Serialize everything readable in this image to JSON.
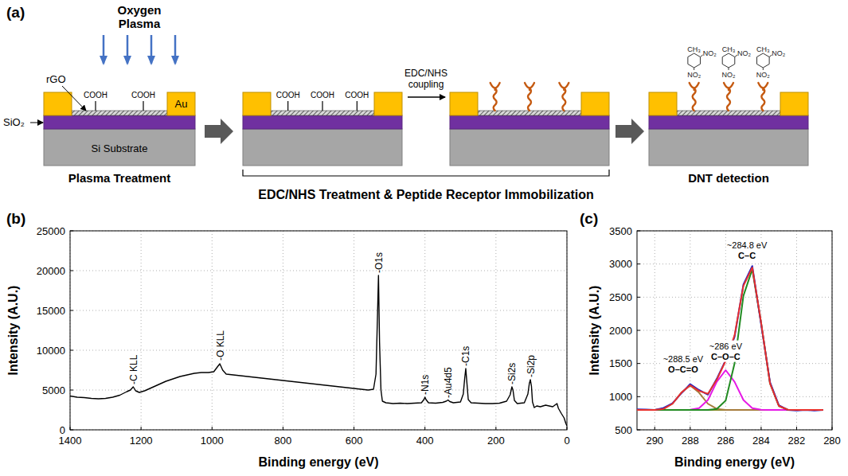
{
  "diagram": {
    "panel_label": "(a)",
    "plasma_label": "Oxygen Plasma",
    "layer_labels": {
      "rgo": "rGO",
      "sio2": "SiO₂",
      "au": "Au",
      "si": "Si Substrate"
    },
    "devices": [
      {
        "groups": [
          "COOH",
          "COOH"
        ],
        "caption": "Plasma Treatment"
      },
      {
        "groups": [
          "COOH",
          "COOH",
          "COOH"
        ]
      },
      {
        "receptors": 3
      },
      {
        "receptors": 3,
        "molecules": 3,
        "caption": "DNT detection"
      }
    ],
    "step_label": "EDC/NHS coupling",
    "bracket_caption": "EDC/NHS Treatment & Peptide Receptor Immobilization",
    "molecule": {
      "methyl": "CH₃",
      "nitro": "NO₂"
    }
  },
  "chart_data": [
    {
      "type": "line",
      "panel_label": "(b)",
      "x_label": "Binding energy (eV)",
      "y_label": "Intensity (A.U.)",
      "xlim": [
        1400,
        0
      ],
      "ylim": [
        0,
        25000
      ],
      "xticks": [
        1400,
        1200,
        1000,
        800,
        600,
        400,
        200,
        0
      ],
      "yticks": [
        0,
        5000,
        10000,
        15000,
        20000,
        25000
      ],
      "grid": true,
      "x": [
        1400,
        1380,
        1360,
        1340,
        1320,
        1300,
        1280,
        1260,
        1240,
        1230,
        1222,
        1215,
        1205,
        1190,
        1170,
        1150,
        1130,
        1110,
        1090,
        1070,
        1050,
        1030,
        1010,
        995,
        985,
        978,
        970,
        960,
        940,
        920,
        900,
        880,
        860,
        840,
        820,
        800,
        780,
        760,
        740,
        720,
        700,
        680,
        660,
        640,
        620,
        600,
        580,
        560,
        545,
        538,
        534,
        531,
        528,
        524,
        520,
        510,
        490,
        470,
        450,
        430,
        410,
        403,
        400,
        397,
        390,
        370,
        350,
        340,
        335,
        330,
        320,
        300,
        292,
        288,
        285,
        282,
        278,
        270,
        250,
        230,
        210,
        190,
        170,
        160,
        155,
        152,
        148,
        140,
        120,
        110,
        106,
        103,
        100,
        97,
        92,
        85,
        75,
        60,
        40,
        28,
        24,
        15,
        8,
        3,
        0
      ],
      "series": [
        {
          "color": "#000000",
          "values": [
            4250,
            4100,
            4050,
            3950,
            3900,
            3950,
            4100,
            4350,
            4800,
            5000,
            5400,
            4900,
            4700,
            4900,
            5300,
            5700,
            6100,
            6400,
            6700,
            6900,
            7100,
            7200,
            7200,
            7300,
            7900,
            8300,
            7500,
            7000,
            6900,
            6800,
            6700,
            6600,
            6500,
            6400,
            6300,
            6200,
            6100,
            6000,
            5900,
            5800,
            5700,
            5600,
            5500,
            5400,
            5300,
            5200,
            5100,
            5000,
            5100,
            7000,
            14000,
            19400,
            11000,
            5000,
            3600,
            3400,
            3300,
            3350,
            3300,
            3350,
            3400,
            3800,
            4100,
            3800,
            3400,
            3350,
            3450,
            3600,
            3750,
            3550,
            3400,
            3500,
            4500,
            6500,
            7700,
            6000,
            3800,
            3400,
            3350,
            3300,
            3300,
            3350,
            3600,
            4400,
            5400,
            5000,
            3700,
            3300,
            3400,
            4500,
            5800,
            6300,
            5500,
            3500,
            2800,
            3000,
            2900,
            3100,
            2900,
            3300,
            2700,
            2000,
            1500,
            800,
            500
          ]
        }
      ],
      "annotations": [
        {
          "text": "-C KLL",
          "x": 1222,
          "y": 5700
        },
        {
          "text": "-O KLL",
          "x": 978,
          "y": 8700
        },
        {
          "text": "-O1s",
          "x": 531,
          "y": 19700
        },
        {
          "text": "-N1s",
          "x": 400,
          "y": 4400
        },
        {
          "text": "-Au4d5",
          "x": 335,
          "y": 4000
        },
        {
          "text": "-C1s",
          "x": 285,
          "y": 8000
        },
        {
          "text": "-Si2s",
          "x": 155,
          "y": 5700
        },
        {
          "text": "-Si2p",
          "x": 103,
          "y": 6600
        }
      ]
    },
    {
      "type": "line",
      "panel_label": "(c)",
      "x_label": "Binding energy (eV)",
      "y_label": "Intensity (A.U.)",
      "xlim": [
        291,
        280
      ],
      "ylim": [
        500,
        3500
      ],
      "xticks": [
        290,
        288,
        286,
        284,
        282,
        280
      ],
      "yticks": [
        500,
        1000,
        1500,
        2000,
        2500,
        3000,
        3500
      ],
      "grid": true,
      "x": [
        291,
        290.5,
        290,
        289.5,
        289,
        288.5,
        288,
        287.5,
        287,
        286.5,
        286,
        285.5,
        285,
        284.5,
        284,
        283.5,
        283,
        282.5,
        282,
        281.5,
        281,
        280.5
      ],
      "series": [
        {
          "color": "#8c8c2c",
          "values": [
            800,
            800,
            800,
            800,
            800,
            800,
            800,
            800,
            800,
            800,
            800,
            800,
            800,
            800,
            800,
            800,
            800,
            800,
            800,
            800,
            800,
            800
          ]
        },
        {
          "color": "#a67c3d",
          "values": [
            800,
            800,
            801,
            816,
            893,
            1060,
            1170,
            1060,
            893,
            816,
            801,
            800,
            800,
            800,
            800,
            800,
            800,
            800,
            800,
            800,
            800,
            800
          ]
        },
        {
          "color": "#e619e6",
          "values": [
            800,
            800,
            800,
            800,
            800,
            800,
            802,
            826,
            950,
            1224,
            1400,
            1224,
            950,
            826,
            802,
            800,
            800,
            800,
            800,
            800,
            800,
            800
          ]
        },
        {
          "color": "#228b22",
          "values": [
            800,
            800,
            800,
            800,
            800,
            800,
            800,
            800,
            800,
            815,
            940,
            1500,
            2520,
            2920,
            2110,
            1200,
            860,
            803,
            800,
            800,
            800,
            800
          ]
        },
        {
          "color": "#2020c0",
          "values": [
            810,
            805,
            800,
            830,
            900,
            1050,
            1190,
            1100,
            1030,
            1270,
            1550,
            1900,
            2690,
            2970,
            2090,
            1220,
            870,
            800,
            790,
            800,
            790,
            800
          ]
        },
        {
          "color": "#e8302c",
          "values": [
            800,
            800,
            801,
            816,
            893,
            1060,
            1172,
            1086,
            1043,
            1255,
            1541,
            1924,
            2670,
            2946,
            2112,
            1200,
            860,
            803,
            800,
            800,
            800,
            800
          ]
        }
      ],
      "annotations": [
        {
          "energy": "~284.8 eV",
          "label": "C–C",
          "x": 284.8,
          "y": 3080
        },
        {
          "energy": "~286 eV",
          "label": "C–O–C",
          "x": 286,
          "y": 1560
        },
        {
          "energy": "~288.5 eV",
          "label": "O–C=O",
          "x": 288.4,
          "y": 1370
        }
      ]
    }
  ]
}
